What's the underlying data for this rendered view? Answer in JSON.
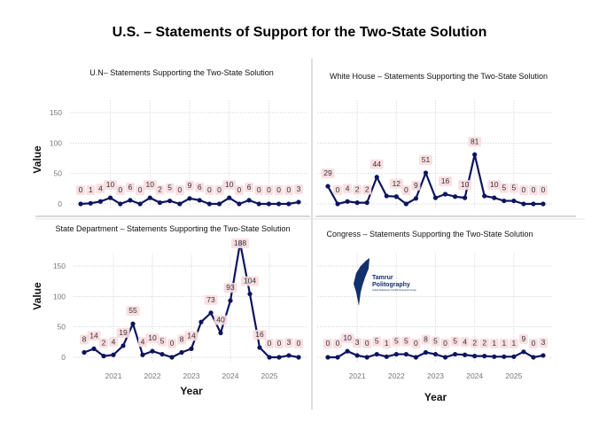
{
  "title": "U.S. – Statements of Support for the Two-State Solution",
  "colors": {
    "line": "#0d145e",
    "label_bg": "#f9dcdf",
    "grid": "#d9d9d9"
  },
  "logo": {
    "name": "Tamrur Politography",
    "line1": "Tamrur",
    "line2": "Politography",
    "subtitle": "Israeli-Palestinian Conflict Research Group",
    "icon": "map-of-israel-icon"
  },
  "chart_data": [
    {
      "type": "line",
      "title": "U.N– Statements Supporting the Two-State Solution",
      "ylabel": "Value",
      "xlabel": "",
      "ylim": [
        0,
        190
      ],
      "yticks": [
        0,
        50,
        100,
        150
      ],
      "xticks": [],
      "grid": true,
      "x_start": "2020 Q2",
      "x_step": "quarter",
      "values": [
        0,
        1,
        4,
        10,
        0,
        6,
        0,
        10,
        2,
        5,
        0,
        9,
        6,
        0,
        0,
        10,
        0,
        6,
        0,
        0,
        0,
        0,
        3
      ]
    },
    {
      "type": "line",
      "title": "White House – Statements Supporting the Two-State Solution",
      "ylabel": "",
      "xlabel": "",
      "ylim": [
        0,
        190
      ],
      "yticks": [],
      "xticks": [],
      "grid": true,
      "x_start": "2020 Q2",
      "x_step": "quarter",
      "values": [
        29,
        0,
        4,
        2,
        2,
        44,
        13,
        12,
        0,
        9,
        51,
        10,
        16,
        12,
        10,
        81,
        13,
        10,
        5,
        5,
        0,
        0,
        0
      ],
      "labels": [
        "29",
        "0",
        "4",
        "2",
        "2",
        "44",
        "",
        "12",
        "0",
        "9",
        "51",
        "",
        "16",
        "",
        "10",
        "81",
        "",
        "10",
        "5",
        "5",
        "0",
        "0",
        "0"
      ]
    },
    {
      "type": "line",
      "title": "State Department  – Statements Supporting the Two-State Solution",
      "ylabel": "Value",
      "xlabel": "Year",
      "ylim": [
        0,
        190
      ],
      "yticks": [
        0,
        50,
        100,
        150
      ],
      "xticks": [
        "2021",
        "2022",
        "2023",
        "2024",
        "2025"
      ],
      "grid": true,
      "x_start": "2020 Q2",
      "x_step": "quarter",
      "values": [
        8,
        14,
        2,
        4,
        19,
        55,
        4,
        10,
        5,
        0,
        8,
        14,
        58,
        73,
        40,
        93,
        188,
        104,
        16,
        0,
        0,
        3,
        0
      ],
      "labels": [
        "8",
        "14",
        "2",
        "4",
        "19",
        "55",
        "4",
        "10",
        "5",
        "0",
        "8",
        "14",
        "",
        "73",
        "40",
        "93",
        "188",
        "104",
        "16",
        "0",
        "0",
        "3",
        "0"
      ]
    },
    {
      "type": "line",
      "title": "Congress – Statements Supporting the Two-State Solution",
      "ylabel": "",
      "xlabel": "Year",
      "ylim": [
        0,
        190
      ],
      "yticks": [],
      "xticks": [
        "2021",
        "2022",
        "2023",
        "2024",
        "2025"
      ],
      "grid": true,
      "x_start": "2020 Q2",
      "x_step": "quarter",
      "values": [
        0,
        0,
        10,
        3,
        0,
        5,
        1,
        5,
        5,
        0,
        8,
        5,
        0,
        5,
        4,
        2,
        2,
        1,
        1,
        1,
        9,
        0,
        3
      ]
    }
  ]
}
